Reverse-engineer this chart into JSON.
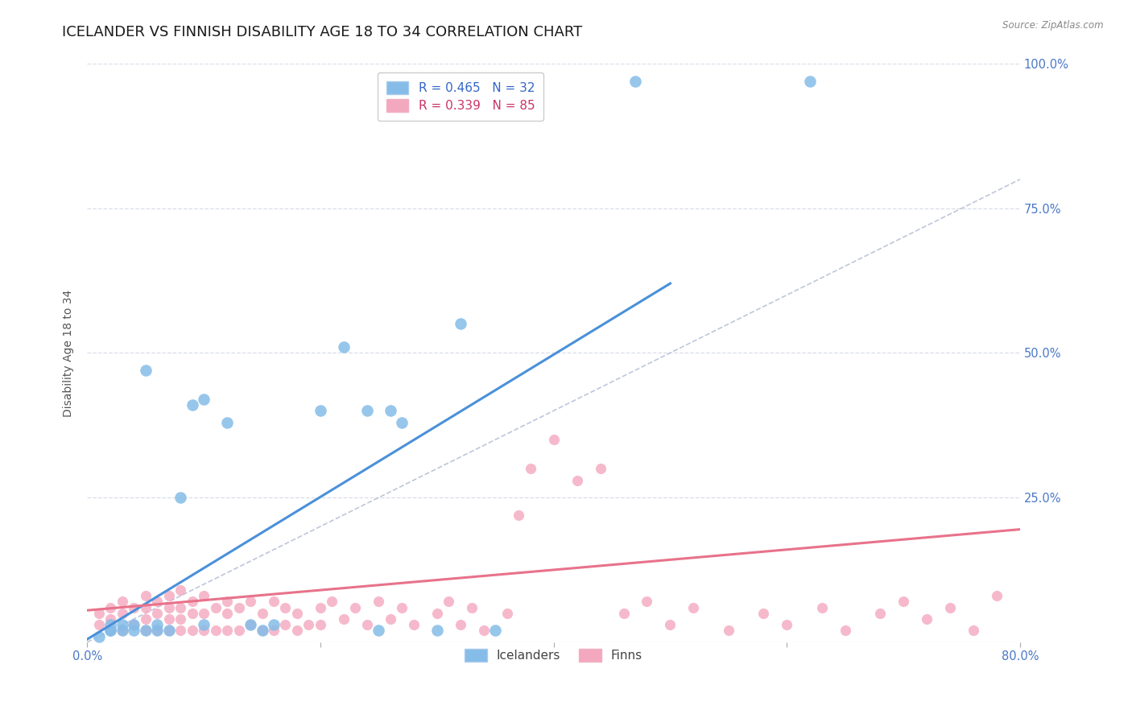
{
  "title": "ICELANDER VS FINNISH DISABILITY AGE 18 TO 34 CORRELATION CHART",
  "source": "Source: ZipAtlas.com",
  "ylabel": "Disability Age 18 to 34",
  "xlim": [
    0.0,
    0.8
  ],
  "ylim": [
    0.0,
    1.0
  ],
  "blue_R": 0.465,
  "blue_N": 32,
  "pink_R": 0.339,
  "pink_N": 85,
  "blue_color": "#85bce8",
  "pink_color": "#f4a8c0",
  "blue_line_color": "#4a90d9",
  "pink_line_color": "#e8728a",
  "ref_line_color": "#b0b8d0",
  "background_color": "#ffffff",
  "grid_color": "#d8dde8",
  "title_fontsize": 13,
  "label_fontsize": 10,
  "tick_fontsize": 10.5,
  "legend_fontsize": 11,
  "ice_x": [
    0.01,
    0.02,
    0.02,
    0.02,
    0.03,
    0.03,
    0.04,
    0.04,
    0.05,
    0.05,
    0.06,
    0.06,
    0.07,
    0.08,
    0.09,
    0.1,
    0.1,
    0.12,
    0.14,
    0.15,
    0.16,
    0.2,
    0.22,
    0.24,
    0.25,
    0.26,
    0.27,
    0.3,
    0.32,
    0.35,
    0.47,
    0.62
  ],
  "ice_y": [
    0.01,
    0.02,
    0.02,
    0.03,
    0.02,
    0.03,
    0.02,
    0.03,
    0.02,
    0.47,
    0.03,
    0.02,
    0.02,
    0.25,
    0.41,
    0.42,
    0.03,
    0.38,
    0.03,
    0.02,
    0.03,
    0.4,
    0.51,
    0.4,
    0.02,
    0.4,
    0.38,
    0.02,
    0.55,
    0.02,
    0.97,
    0.97
  ],
  "finn_x": [
    0.01,
    0.01,
    0.02,
    0.02,
    0.02,
    0.03,
    0.03,
    0.03,
    0.04,
    0.04,
    0.05,
    0.05,
    0.05,
    0.05,
    0.06,
    0.06,
    0.06,
    0.07,
    0.07,
    0.07,
    0.07,
    0.08,
    0.08,
    0.08,
    0.08,
    0.09,
    0.09,
    0.09,
    0.1,
    0.1,
    0.1,
    0.11,
    0.11,
    0.12,
    0.12,
    0.12,
    0.13,
    0.13,
    0.14,
    0.14,
    0.15,
    0.15,
    0.16,
    0.16,
    0.17,
    0.17,
    0.18,
    0.18,
    0.19,
    0.2,
    0.2,
    0.21,
    0.22,
    0.23,
    0.24,
    0.25,
    0.26,
    0.27,
    0.28,
    0.3,
    0.31,
    0.32,
    0.33,
    0.34,
    0.36,
    0.37,
    0.38,
    0.4,
    0.42,
    0.44,
    0.46,
    0.48,
    0.5,
    0.52,
    0.55,
    0.58,
    0.6,
    0.63,
    0.65,
    0.68,
    0.7,
    0.72,
    0.74,
    0.76,
    0.78
  ],
  "finn_y": [
    0.03,
    0.05,
    0.02,
    0.04,
    0.06,
    0.02,
    0.05,
    0.07,
    0.03,
    0.06,
    0.02,
    0.04,
    0.06,
    0.08,
    0.02,
    0.05,
    0.07,
    0.02,
    0.04,
    0.06,
    0.08,
    0.02,
    0.04,
    0.06,
    0.09,
    0.02,
    0.05,
    0.07,
    0.02,
    0.05,
    0.08,
    0.02,
    0.06,
    0.02,
    0.05,
    0.07,
    0.02,
    0.06,
    0.03,
    0.07,
    0.02,
    0.05,
    0.02,
    0.07,
    0.03,
    0.06,
    0.02,
    0.05,
    0.03,
    0.06,
    0.03,
    0.07,
    0.04,
    0.06,
    0.03,
    0.07,
    0.04,
    0.06,
    0.03,
    0.05,
    0.07,
    0.03,
    0.06,
    0.02,
    0.05,
    0.22,
    0.3,
    0.35,
    0.28,
    0.3,
    0.05,
    0.07,
    0.03,
    0.06,
    0.02,
    0.05,
    0.03,
    0.06,
    0.02,
    0.05,
    0.07,
    0.04,
    0.06,
    0.02,
    0.08
  ]
}
